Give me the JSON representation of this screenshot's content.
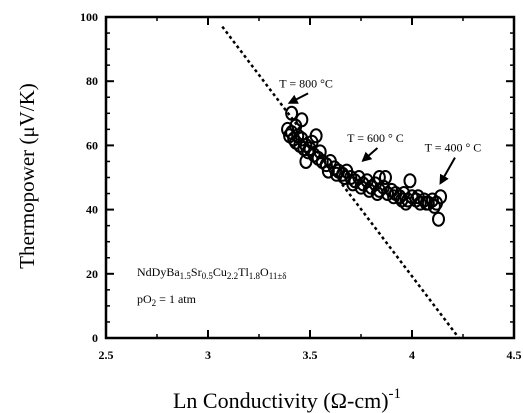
{
  "chart_data": {
    "type": "scatter",
    "title": "",
    "xlabel": "Ln Conductivity (Ω-cm)",
    "xlabel_superscript": "-1",
    "ylabel": "Thermopower (μV/K)",
    "xlim": [
      2.5,
      4.5
    ],
    "ylim": [
      0,
      100
    ],
    "xticks": [
      2.5,
      3,
      3.5,
      4,
      4.5
    ],
    "xtick_labels": [
      "2.5",
      "3",
      "3.5",
      "4",
      "4.5"
    ],
    "yticks": [
      0,
      20,
      40,
      60,
      80,
      100
    ],
    "ytick_labels": [
      "0",
      "20",
      "40",
      "60",
      "80",
      "100"
    ],
    "grid": false,
    "dashed_line": {
      "x": [
        3.07,
        4.23
      ],
      "y": [
        97,
        0
      ]
    },
    "series": [
      {
        "marker": "open-circle",
        "x": [
          3.39,
          3.4,
          3.41,
          3.42,
          3.43,
          3.44,
          3.45,
          3.46,
          3.47,
          3.48,
          3.49,
          3.5,
          3.52,
          3.54,
          3.56,
          3.58,
          3.6,
          3.62,
          3.64,
          3.66,
          3.68,
          3.7,
          3.72,
          3.74,
          3.76,
          3.78,
          3.8,
          3.82,
          3.84,
          3.86,
          3.88,
          3.9,
          3.92,
          3.94,
          3.96,
          3.98,
          4.0,
          4.02,
          4.04,
          4.06,
          4.08,
          4.1,
          4.12,
          4.13,
          4.14,
          3.41,
          3.43,
          3.46,
          3.48,
          3.51,
          3.55,
          3.59,
          3.63,
          3.67,
          3.71,
          3.75,
          3.79,
          3.83,
          3.87,
          3.91,
          3.95,
          3.99,
          4.03,
          4.07,
          4.11,
          3.53,
          3.97,
          3.84
        ],
        "y": [
          65,
          63,
          64,
          62,
          61,
          63,
          60,
          62,
          59,
          60,
          58,
          59,
          57,
          56,
          55,
          54,
          55,
          53,
          52,
          51,
          52,
          50,
          49,
          50,
          48,
          49,
          47,
          48,
          46,
          47,
          45,
          46,
          45,
          44,
          45,
          43,
          44,
          43,
          42,
          43,
          42,
          43,
          42,
          37,
          44,
          70,
          66,
          68,
          55,
          61,
          58,
          52,
          51,
          50,
          48,
          47,
          46,
          45,
          50,
          44,
          43,
          49,
          44,
          42,
          41,
          63,
          42,
          50
        ]
      }
    ],
    "annotations": [
      {
        "text": "T = 800 °C",
        "x": 3.38,
        "y": 72,
        "arrow_from": [
          3.52,
          79
        ]
      },
      {
        "text": "T = 600 ° C",
        "x": 3.74,
        "y": 54,
        "arrow_from": [
          3.86,
          62
        ]
      },
      {
        "text": "T = 400 ° C",
        "x": 4.12,
        "y": 47,
        "arrow_from": [
          4.24,
          59
        ]
      }
    ],
    "formula": {
      "compound": "NdDyBa1.5Sr0.5Cu2.2Tl1.8O11±δ",
      "pressure": "pO2 = 1 atm"
    }
  }
}
